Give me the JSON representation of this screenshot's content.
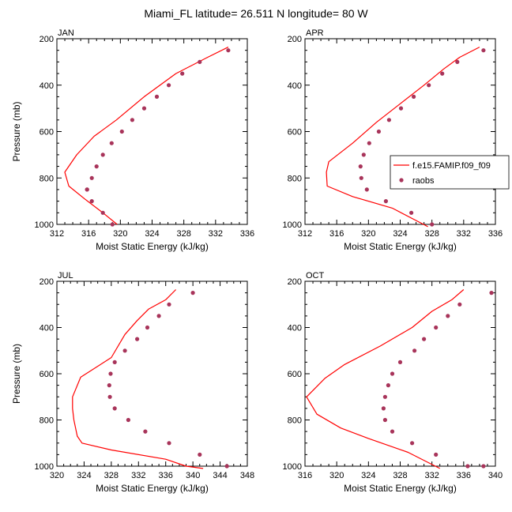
{
  "figure": {
    "title": "Miami_FL  latitude= 26.511 N longitude= 80 W",
    "colors": {
      "model_line": "#ff0000",
      "raobs_marker": "#a8345a",
      "axis": "#000000"
    }
  },
  "chart_data": [
    {
      "type": "line",
      "panel": "JAN",
      "title": "JAN",
      "xlabel": "Moist Static Energy (kJ/kg)",
      "ylabel": "Pressure (mb)",
      "xlim": [
        312,
        336
      ],
      "ylim": [
        1000,
        200
      ],
      "xticks": [
        312,
        316,
        320,
        324,
        328,
        332,
        336
      ],
      "yticks": [
        200,
        400,
        600,
        800,
        1000
      ],
      "series": [
        {
          "name": "f.e15.FAMIP.f09_f09",
          "kind": "line",
          "x": [
            333.6,
            331.0,
            327.0,
            323.0,
            319.5,
            316.7,
            314.5,
            313.0,
            313.5,
            315.5,
            317.8,
            319.6
          ],
          "y": [
            236,
            280,
            350,
            450,
            550,
            620,
            700,
            775,
            835,
            890,
            950,
            1000
          ]
        },
        {
          "name": "raobs",
          "kind": "scatter",
          "x": [
            333.6,
            330.0,
            327.8,
            326.1,
            324.6,
            323.0,
            321.5,
            320.2,
            318.9,
            317.8,
            317.0,
            316.4,
            315.8,
            315.8,
            316.4,
            317.8,
            319.0
          ],
          "y": [
            250,
            300,
            350,
            400,
            450,
            500,
            550,
            600,
            650,
            700,
            750,
            800,
            850,
            850,
            900,
            950,
            1000
          ]
        }
      ]
    },
    {
      "type": "line",
      "panel": "APR",
      "title": "APR",
      "xlabel": "Moist Static Energy (kJ/kg)",
      "ylabel": "",
      "xlim": [
        312,
        336
      ],
      "ylim": [
        1000,
        200
      ],
      "xticks": [
        312,
        316,
        320,
        324,
        328,
        332,
        336
      ],
      "yticks": [
        200,
        400,
        600,
        800,
        1000
      ],
      "legend": {
        "position": "middle-right",
        "entries": [
          "f.e15.FAMIP.f09_f09",
          "raobs"
        ]
      },
      "series": [
        {
          "name": "f.e15.FAMIP.f09_f09",
          "kind": "line",
          "x": [
            334.0,
            331.5,
            329.5,
            327.0,
            324.0,
            321.0,
            318.0,
            315.0,
            314.7,
            314.8,
            318.0,
            323.0,
            327.5
          ],
          "y": [
            236,
            280,
            330,
            400,
            480,
            560,
            650,
            730,
            775,
            835,
            880,
            930,
            1010
          ]
        },
        {
          "name": "raobs",
          "kind": "scatter",
          "x": [
            334.5,
            331.2,
            329.3,
            327.6,
            325.7,
            324.1,
            322.6,
            321.3,
            320.1,
            319.4,
            319.0,
            319.1,
            319.8,
            322.2,
            325.4,
            328.0
          ],
          "y": [
            250,
            300,
            350,
            400,
            450,
            500,
            550,
            600,
            650,
            700,
            750,
            800,
            850,
            900,
            950,
            1000
          ]
        }
      ]
    },
    {
      "type": "line",
      "panel": "JUL",
      "title": "JUL",
      "xlabel": "Moist Static Energy (kJ/kg)",
      "ylabel": "Pressure (mb)",
      "xlim": [
        320,
        348
      ],
      "ylim": [
        1000,
        200
      ],
      "xticks": [
        320,
        324,
        328,
        332,
        336,
        340,
        344,
        348
      ],
      "yticks": [
        200,
        400,
        600,
        800,
        1000
      ],
      "series": [
        {
          "name": "f.e15.FAMIP.f09_f09",
          "kind": "line",
          "x": [
            337.5,
            336.0,
            333.5,
            331.8,
            330.0,
            328.0,
            323.5,
            322.3,
            322.3,
            322.5,
            323.0,
            323.7,
            328.0,
            336.0,
            339.0,
            341.5
          ],
          "y": [
            236,
            280,
            320,
            370,
            430,
            530,
            615,
            700,
            750,
            800,
            870,
            900,
            930,
            970,
            1000,
            1010
          ]
        },
        {
          "name": "raobs",
          "kind": "scatter",
          "x": [
            340.0,
            336.5,
            335.0,
            333.3,
            331.8,
            330.0,
            328.5,
            327.9,
            327.7,
            327.8,
            328.5,
            330.5,
            333.0,
            336.5,
            341.0,
            345.0
          ],
          "y": [
            250,
            300,
            350,
            400,
            450,
            500,
            550,
            600,
            650,
            700,
            750,
            800,
            850,
            900,
            950,
            1000
          ]
        }
      ]
    },
    {
      "type": "line",
      "panel": "OCT",
      "title": "OCT",
      "xlabel": "Moist Static Energy (kJ/kg)",
      "ylabel": "",
      "xlim": [
        316,
        340
      ],
      "ylim": [
        1000,
        200
      ],
      "xticks": [
        316,
        320,
        324,
        328,
        332,
        336,
        340
      ],
      "yticks": [
        200,
        400,
        600,
        800,
        1000
      ],
      "series": [
        {
          "name": "f.e15.FAMIP.f09_f09",
          "kind": "line",
          "x": [
            336.0,
            334.5,
            332.0,
            329.5,
            325.5,
            321.0,
            318.5,
            316.2,
            317.5,
            320.5,
            324.0,
            329.0,
            333.0
          ],
          "y": [
            236,
            280,
            330,
            400,
            480,
            560,
            620,
            700,
            775,
            835,
            880,
            940,
            1010
          ]
        },
        {
          "name": "raobs",
          "kind": "scatter",
          "x": [
            339.5,
            335.5,
            334.0,
            332.5,
            331.0,
            329.8,
            328.0,
            327.0,
            326.5,
            326.1,
            325.9,
            326.1,
            327.0,
            329.5,
            332.5,
            336.5,
            338.5
          ],
          "y": [
            250,
            300,
            350,
            400,
            450,
            500,
            550,
            600,
            650,
            700,
            750,
            800,
            850,
            900,
            950,
            1000,
            1000
          ]
        }
      ]
    }
  ]
}
